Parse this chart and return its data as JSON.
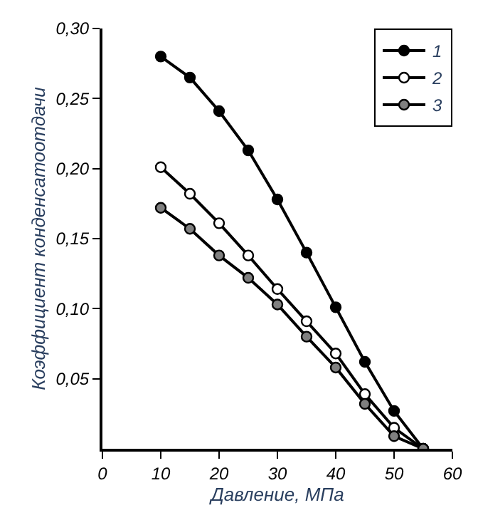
{
  "chart_data": {
    "type": "line",
    "xlabel": "Давление, МПа",
    "ylabel": "Коэффициент конденсатоотдачи",
    "x": [
      10,
      15,
      20,
      25,
      30,
      35,
      40,
      45,
      50,
      55
    ],
    "series": [
      {
        "name": "1",
        "color": "#000000",
        "values": [
          0.28,
          0.265,
          0.241,
          0.213,
          0.178,
          0.14,
          0.101,
          0.062,
          0.027,
          0
        ]
      },
      {
        "name": "2",
        "color": "#ffffff",
        "values": [
          0.201,
          0.182,
          0.161,
          0.138,
          0.114,
          0.091,
          0.068,
          0.039,
          0.015,
          0
        ]
      },
      {
        "name": "3",
        "color": "#808080",
        "values": [
          0.172,
          0.157,
          0.138,
          0.122,
          0.103,
          0.08,
          0.058,
          0.032,
          0.009,
          0
        ]
      }
    ],
    "xlim": [
      0,
      60
    ],
    "xticks": [
      0,
      10,
      20,
      30,
      40,
      50,
      60
    ],
    "ylim": [
      0,
      0.3
    ],
    "yticks": [
      {
        "value": 0.05,
        "label": "0,05"
      },
      {
        "value": 0.1,
        "label": "0,10"
      },
      {
        "value": 0.15,
        "label": "0,15"
      },
      {
        "value": 0.2,
        "label": "0,20"
      },
      {
        "value": 0.25,
        "label": "0,25"
      },
      {
        "value": 0.3,
        "label": "0,30"
      }
    ],
    "legend": "top right",
    "marker": "circle",
    "line_style": "solid"
  }
}
